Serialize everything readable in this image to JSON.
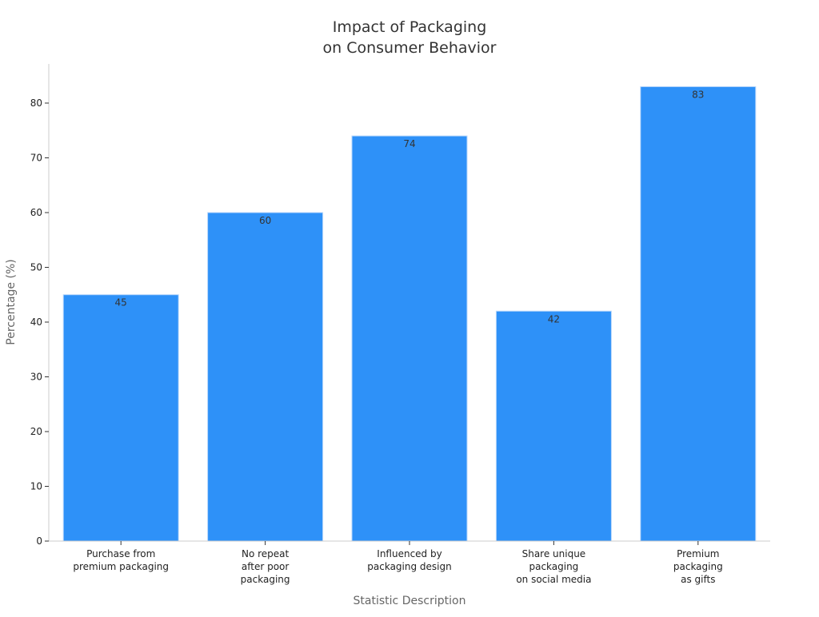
{
  "chart_data": {
    "type": "bar",
    "title": [
      "Impact of Packaging",
      "on Consumer Behavior"
    ],
    "xlabel": "Statistic Description",
    "ylabel": "Percentage (%)",
    "categories": [
      [
        "Purchase from",
        "premium packaging"
      ],
      [
        "No repeat",
        "after poor",
        "packaging"
      ],
      [
        "Influenced by",
        "packaging design"
      ],
      [
        "Share unique",
        "packaging",
        "on social media"
      ],
      [
        "Premium",
        "packaging",
        "as gifts"
      ]
    ],
    "values": [
      45,
      60,
      74,
      42,
      83
    ],
    "data_labels": [
      "45",
      "60",
      "74",
      "42",
      "83"
    ],
    "ylim": [
      0,
      87.15
    ],
    "yticks": [
      0,
      10,
      20,
      30,
      40,
      50,
      60,
      70,
      80
    ],
    "grid": false,
    "legend": "none",
    "colors": {
      "bar": "#2e91f8",
      "bar_edge": "#b9d7fb",
      "axis": "#cccccc",
      "tick_text": "#222222",
      "title": "#333333",
      "axis_title": "#666666"
    }
  }
}
